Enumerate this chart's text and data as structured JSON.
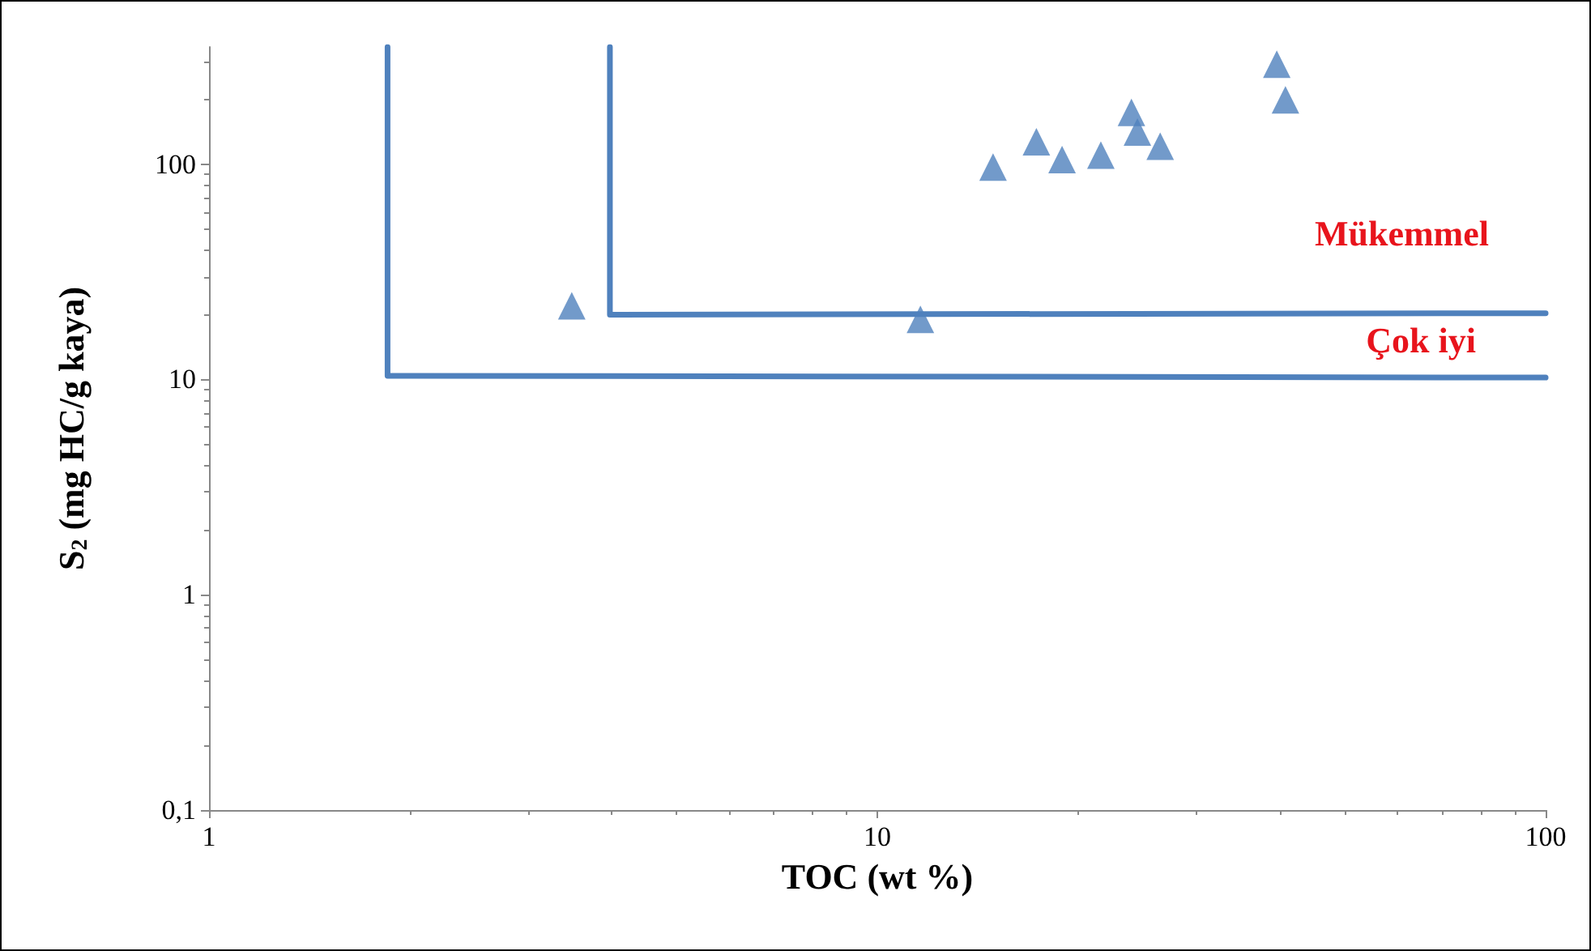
{
  "chart_data": {
    "type": "scatter",
    "xlabel": "TOC (wt %)",
    "ylabel": "S$_{2}$ (mg HC/g kaya)",
    "log": "xy",
    "grid": false,
    "marker": "triangle",
    "xlim": [
      1,
      100
    ],
    "xticks": [
      1,
      10,
      100
    ],
    "ylim": [
      0.1,
      350
    ],
    "yticks": [
      {
        "value": 0.1,
        "label": "0,1"
      },
      1,
      10,
      100
    ],
    "series": [
      {
        "color": "#4f81bd",
        "x": [
          3.49,
          11.6,
          14.9,
          17.3,
          18.9,
          21.6,
          24.0,
          24.5,
          26.5,
          39.6,
          40.8
        ],
        "values": [
          22,
          19,
          97,
          127,
          105,
          110,
          174,
          141,
          121,
          291,
          199
        ]
      },
      {
        "type": "line",
        "color": "#4f81bd",
        "marker": "none",
        "line_style": "solid",
        "x": [
          1.85,
          1.85,
          100
        ],
        "values": [
          350,
          10.4,
          10.2
        ]
      },
      {
        "type": "line",
        "color": "#4f81bd",
        "marker": "none",
        "line_style": "solid",
        "x": [
          3.98,
          3.98,
          100
        ],
        "values": [
          350,
          20,
          20.3
        ]
      }
    ],
    "annotations": [
      "Mükemmel",
      "Çok iyi"
    ]
  }
}
